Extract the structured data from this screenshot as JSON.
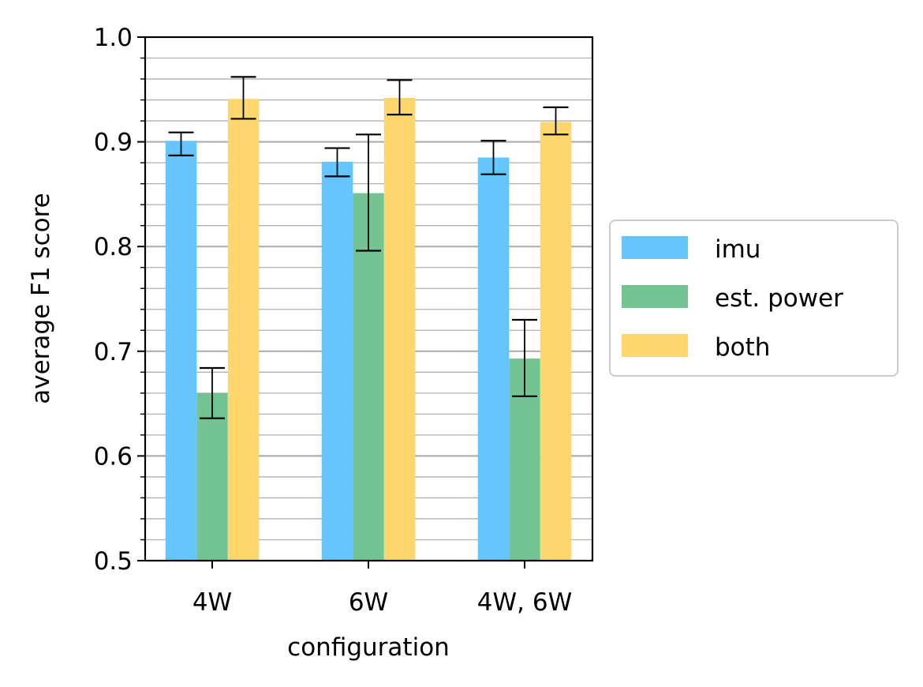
{
  "chart_data": {
    "type": "bar",
    "categories": [
      "4W",
      "6W",
      "4W, 6W"
    ],
    "series": [
      {
        "name": "imu",
        "color": "#66C5FD",
        "values": [
          0.901,
          0.881,
          0.885
        ],
        "err_low": [
          0.887,
          0.867,
          0.869
        ],
        "err_high": [
          0.909,
          0.894,
          0.901
        ]
      },
      {
        "name": "est. power",
        "color": "#73C393",
        "values": [
          0.66,
          0.851,
          0.693
        ],
        "err_low": [
          0.636,
          0.796,
          0.657
        ],
        "err_high": [
          0.684,
          0.907,
          0.73
        ]
      },
      {
        "name": "both",
        "color": "#FDD76C",
        "values": [
          0.941,
          0.942,
          0.919
        ],
        "err_low": [
          0.922,
          0.926,
          0.907
        ],
        "err_high": [
          0.962,
          0.959,
          0.933
        ]
      }
    ],
    "xlabel": "configuration",
    "ylabel": "average F1 score",
    "ylim": [
      0.5,
      1.0
    ],
    "yticks": [
      "0.5",
      "0.6",
      "0.7",
      "0.8",
      "0.9",
      "1.0"
    ],
    "grid": "major and minor horizontal",
    "legend_placement": "right, outside plot area"
  }
}
